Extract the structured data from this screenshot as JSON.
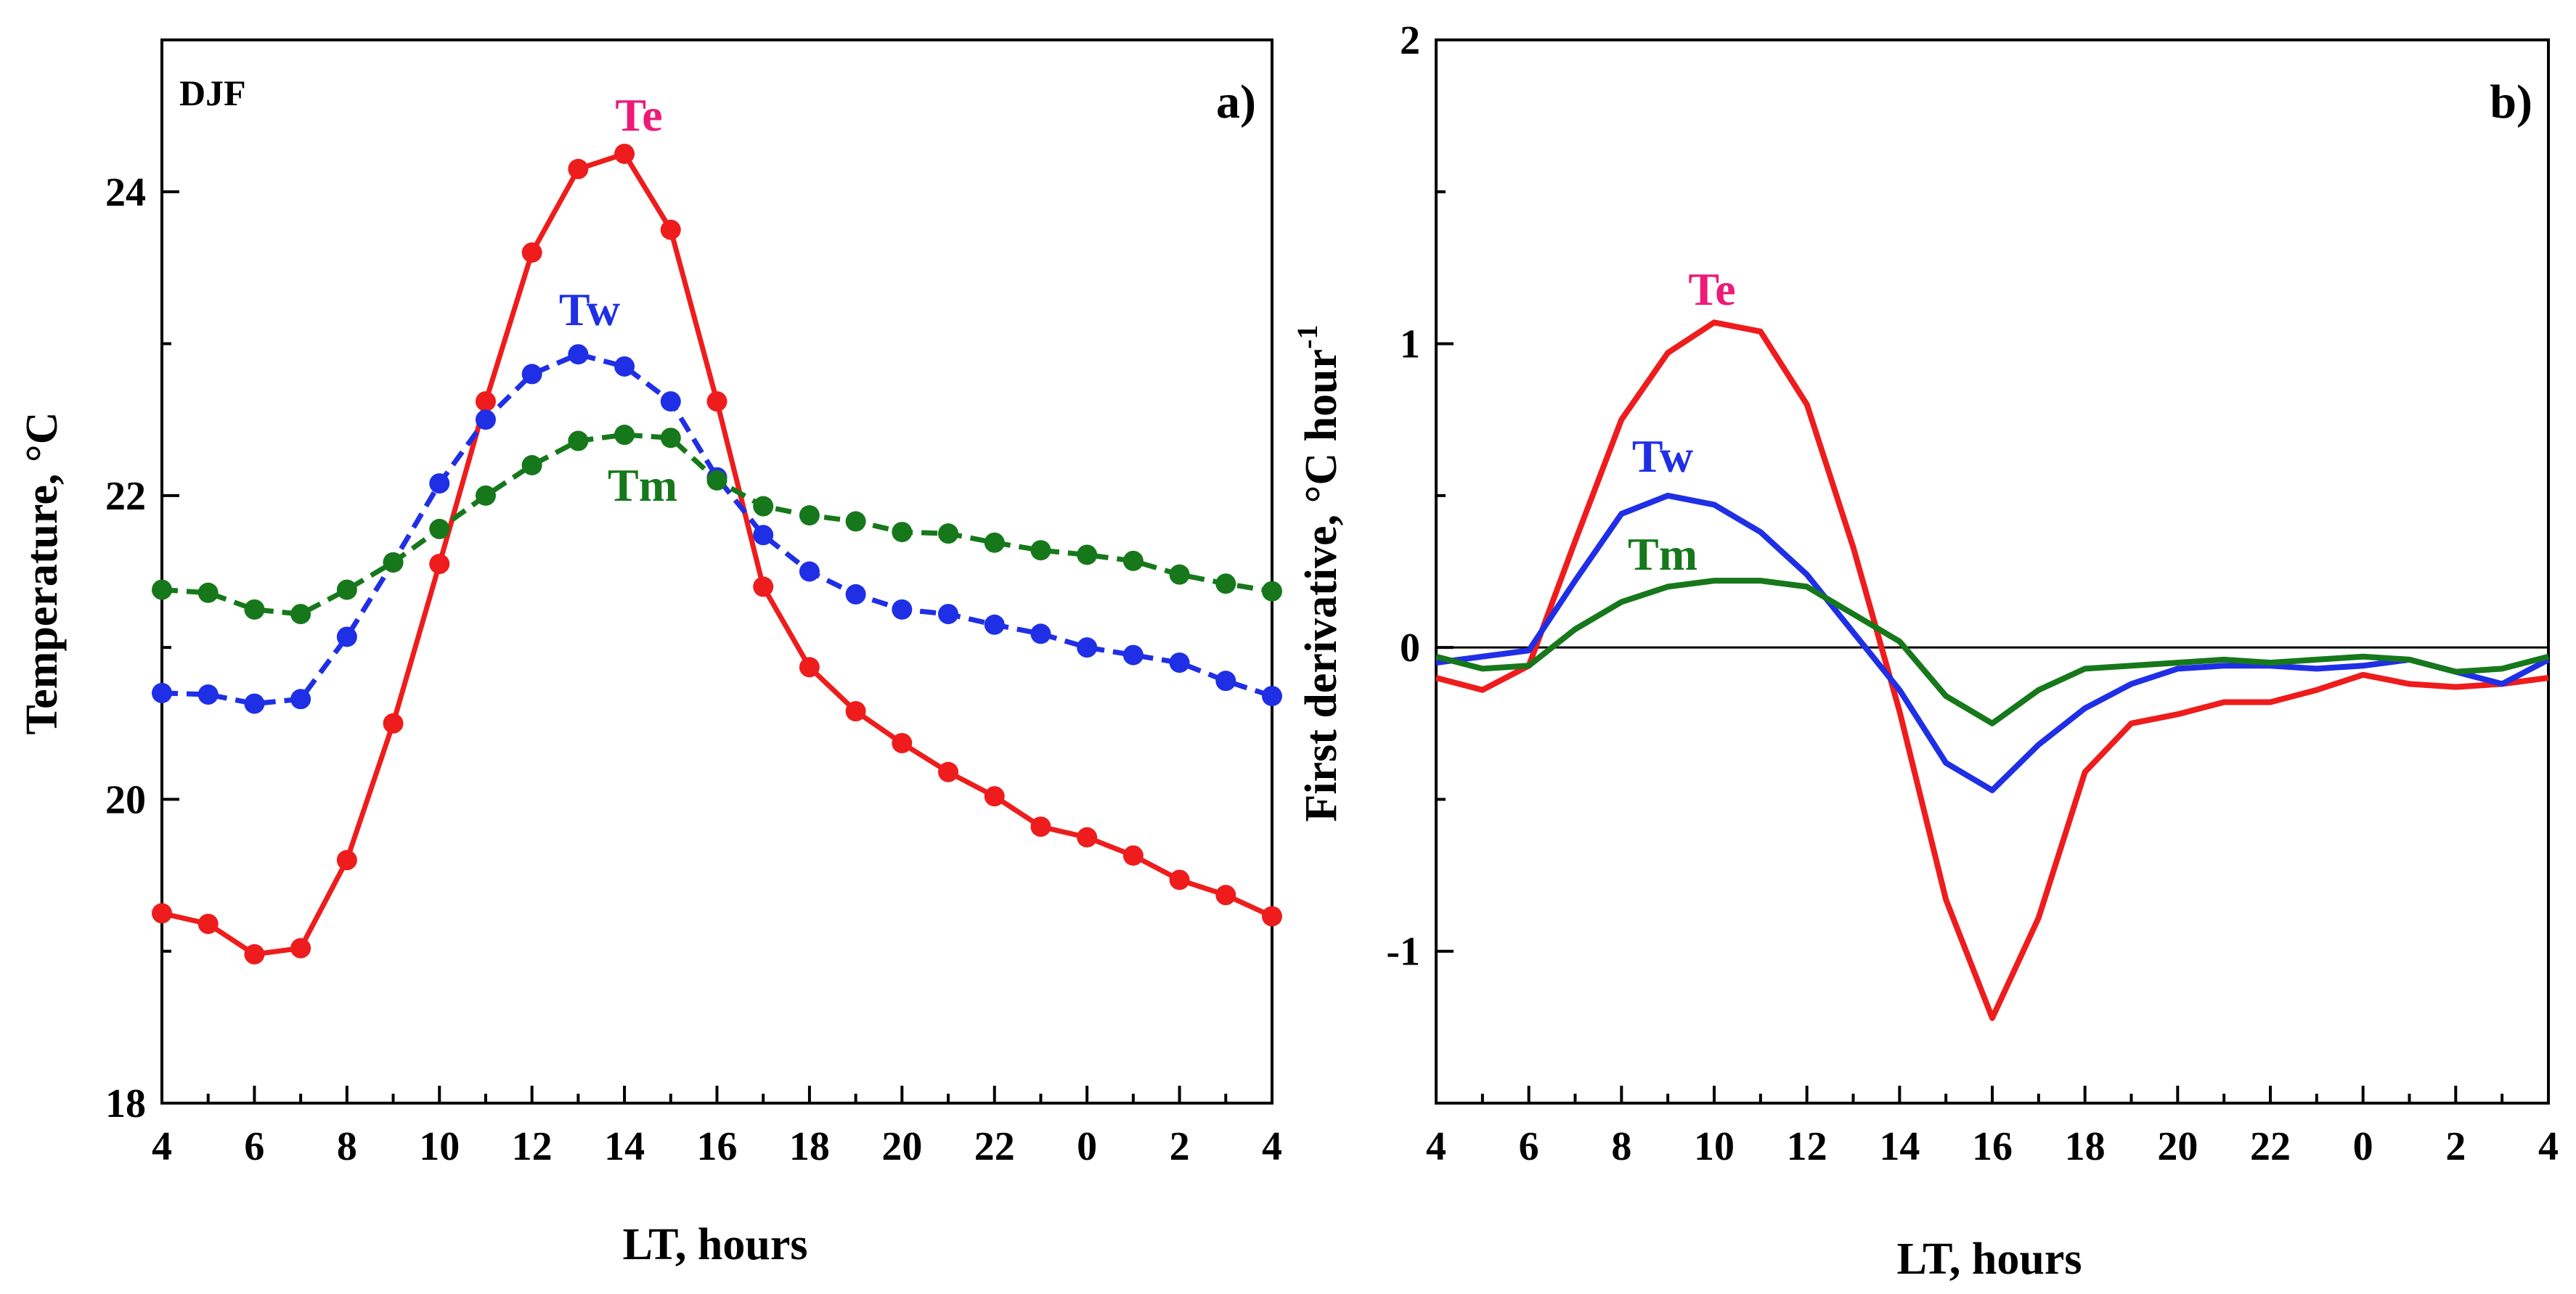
{
  "colors": {
    "Te": "#ee1c1c",
    "Tw": "#1f2fe6",
    "Tm": "#16781a",
    "Te_label": "#ee1a78"
  },
  "chart_data": [
    {
      "type": "line",
      "panel_tag": "a)",
      "season": "DJF",
      "xlabel": "LT,  hours",
      "ylabel": "Temperature,  °C",
      "x_tick_labels": [
        "4",
        "6",
        "8",
        "10",
        "12",
        "14",
        "16",
        "18",
        "20",
        "22",
        "0",
        "2",
        "4"
      ],
      "y_ticks": [
        18,
        20,
        22,
        24
      ],
      "ylim": [
        18,
        25
      ],
      "markers": true,
      "x_hours": [
        4,
        5,
        6,
        7,
        8,
        9,
        10,
        11,
        12,
        13,
        14,
        15,
        16,
        17,
        18,
        19,
        20,
        21,
        22,
        23,
        0,
        1,
        2,
        3,
        4
      ],
      "series": [
        {
          "name": "Te",
          "values": [
            19.25,
            19.18,
            18.98,
            19.02,
            19.6,
            20.5,
            21.55,
            22.62,
            23.6,
            24.15,
            24.25,
            23.75,
            22.62,
            21.4,
            20.87,
            20.58,
            20.37,
            20.18,
            20.02,
            19.82,
            19.75,
            19.63,
            19.47,
            19.37,
            19.23
          ]
        },
        {
          "name": "Tw",
          "values": [
            20.7,
            20.69,
            20.63,
            20.66,
            21.07,
            21.56,
            22.08,
            22.5,
            22.8,
            22.93,
            22.85,
            22.62,
            22.12,
            21.74,
            21.5,
            21.35,
            21.25,
            21.22,
            21.15,
            21.09,
            21.0,
            20.95,
            20.9,
            20.78,
            20.68
          ]
        },
        {
          "name": "Tm",
          "values": [
            21.38,
            21.36,
            21.25,
            21.22,
            21.38,
            21.56,
            21.78,
            22.0,
            22.2,
            22.36,
            22.4,
            22.38,
            22.1,
            21.93,
            21.87,
            21.83,
            21.76,
            21.75,
            21.69,
            21.64,
            21.61,
            21.57,
            21.48,
            21.42,
            21.37
          ]
        }
      ]
    },
    {
      "type": "line",
      "panel_tag": "b)",
      "xlabel": "LT,  hours",
      "ylabel": "First derivative,  °C  hour",
      "ylabel_superscript": "-1",
      "x_tick_labels": [
        "4",
        "6",
        "8",
        "10",
        "12",
        "14",
        "16",
        "18",
        "20",
        "22",
        "0",
        "2",
        "4"
      ],
      "y_ticks": [
        -1,
        0,
        1,
        2
      ],
      "y_tick_labels": [
        "-1",
        "0",
        "1",
        "2"
      ],
      "ylim": [
        -1.5,
        2
      ],
      "zero_line": true,
      "markers": false,
      "x_hours": [
        4,
        5,
        6,
        7,
        8,
        9,
        10,
        11,
        12,
        13,
        14,
        15,
        16,
        17,
        18,
        19,
        20,
        21,
        22,
        23,
        0,
        1,
        2,
        3,
        4
      ],
      "series": [
        {
          "name": "Te",
          "values": [
            -0.1,
            -0.14,
            -0.06,
            0.35,
            0.75,
            0.97,
            1.07,
            1.04,
            0.8,
            0.33,
            -0.21,
            -0.83,
            -1.22,
            -0.89,
            -0.41,
            -0.25,
            -0.22,
            -0.18,
            -0.18,
            -0.14,
            -0.09,
            -0.12,
            -0.13,
            -0.12,
            -0.1
          ]
        },
        {
          "name": "Tw",
          "values": [
            -0.05,
            -0.03,
            -0.01,
            0.22,
            0.44,
            0.5,
            0.47,
            0.38,
            0.24,
            0.05,
            -0.14,
            -0.38,
            -0.47,
            -0.32,
            -0.2,
            -0.12,
            -0.07,
            -0.06,
            -0.06,
            -0.07,
            -0.06,
            -0.04,
            -0.08,
            -0.12,
            -0.04
          ]
        },
        {
          "name": "Tm",
          "values": [
            -0.03,
            -0.07,
            -0.06,
            0.06,
            0.15,
            0.2,
            0.22,
            0.22,
            0.2,
            0.11,
            0.02,
            -0.16,
            -0.25,
            -0.14,
            -0.07,
            -0.06,
            -0.05,
            -0.04,
            -0.05,
            -0.04,
            -0.03,
            -0.04,
            -0.08,
            -0.07,
            -0.03
          ]
        }
      ]
    }
  ]
}
